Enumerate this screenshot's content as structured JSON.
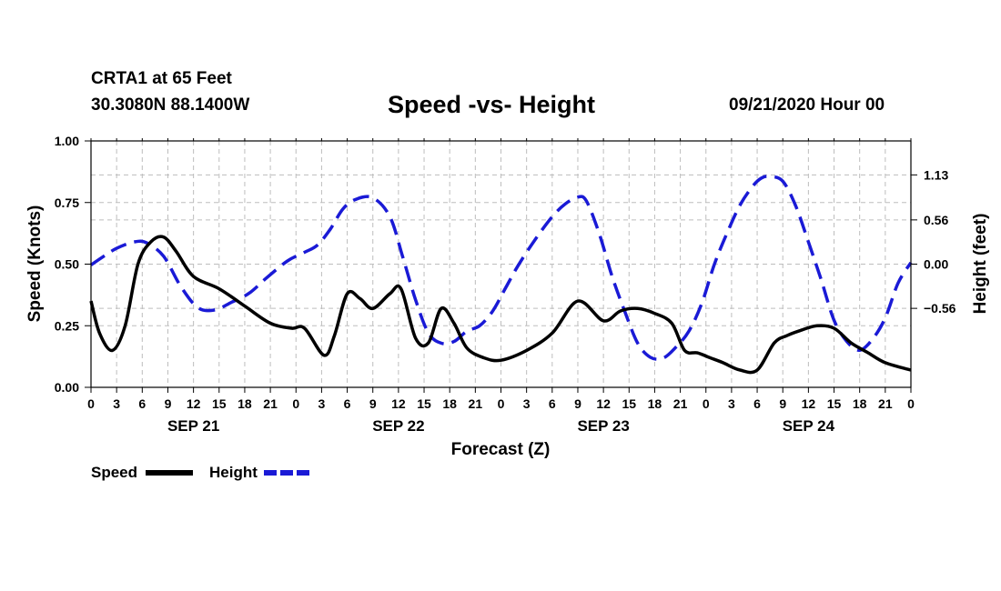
{
  "header": {
    "station": "CRTA1 at 65 Feet",
    "coords": "30.3080N 88.1400W",
    "title": "Speed -vs- Height",
    "datetime": "09/21/2020 Hour 00"
  },
  "chart_data": {
    "type": "line",
    "title": "Speed -vs- Height",
    "xlabel": "Forecast (Z)",
    "ylabel": "Speed (Knots)",
    "y2label": "Height (feet)",
    "xlim": [
      0,
      96
    ],
    "ylim": [
      0,
      1.0
    ],
    "y2lim": [
      -1.56,
      1.56
    ],
    "grid": true,
    "x_ticks": [
      0,
      3,
      6,
      9,
      12,
      15,
      18,
      21,
      24,
      27,
      30,
      33,
      36,
      39,
      42,
      45,
      48,
      51,
      54,
      57,
      60,
      63,
      66,
      69,
      72,
      75,
      78,
      81,
      84,
      87,
      90,
      93,
      96
    ],
    "x_tick_labels": [
      "0",
      "3",
      "6",
      "9",
      "12",
      "15",
      "18",
      "21",
      "0",
      "3",
      "6",
      "9",
      "12",
      "15",
      "18",
      "21",
      "0",
      "3",
      "6",
      "9",
      "12",
      "15",
      "18",
      "21",
      "0",
      "3",
      "6",
      "9",
      "12",
      "15",
      "18",
      "21",
      "0"
    ],
    "y_ticks": [
      0,
      0.25,
      0.5,
      0.75,
      1.0
    ],
    "y_tick_labels": [
      "0.00",
      "0.25",
      "0.50",
      "0.75",
      "1.00"
    ],
    "y2_ticks": [
      1.13,
      0.56,
      0.0,
      -0.56
    ],
    "y2_tick_labels": [
      "1.13",
      "0.56",
      "0.00",
      "−0.56"
    ],
    "day_labels": [
      {
        "x": 12,
        "label": "SEP 21"
      },
      {
        "x": 36,
        "label": "SEP 22"
      },
      {
        "x": 60,
        "label": "SEP 23"
      },
      {
        "x": 84,
        "label": "SEP 24"
      }
    ],
    "legend": [
      {
        "name": "Speed",
        "color": "#000000",
        "style": "solid"
      },
      {
        "name": "Height",
        "color": "#1a1ad6",
        "style": "dashed"
      }
    ],
    "series": [
      {
        "name": "Speed",
        "axis": "left",
        "color": "#000000",
        "dash": false,
        "x": [
          0,
          1,
          2.5,
          4,
          5.5,
          7,
          8.5,
          10,
          12,
          15,
          18,
          21,
          23.5,
          25,
          27.3,
          28.5,
          30,
          31.5,
          33,
          35,
          36.3,
          38,
          39.5,
          41,
          42.5,
          44,
          46,
          48,
          51,
          54,
          57,
          60,
          62,
          64,
          66,
          68,
          69.5,
          71,
          72.5,
          74,
          76,
          78,
          80,
          81.5,
          83,
          85,
          87,
          89,
          91,
          93,
          96
        ],
        "values": [
          0.35,
          0.22,
          0.15,
          0.25,
          0.5,
          0.59,
          0.61,
          0.55,
          0.45,
          0.4,
          0.33,
          0.26,
          0.24,
          0.24,
          0.13,
          0.21,
          0.38,
          0.36,
          0.32,
          0.38,
          0.4,
          0.2,
          0.18,
          0.32,
          0.26,
          0.16,
          0.12,
          0.11,
          0.15,
          0.22,
          0.35,
          0.27,
          0.31,
          0.32,
          0.3,
          0.26,
          0.15,
          0.14,
          0.12,
          0.1,
          0.07,
          0.07,
          0.18,
          0.21,
          0.23,
          0.25,
          0.24,
          0.18,
          0.14,
          0.1,
          0.07
        ]
      },
      {
        "name": "Height",
        "axis": "right",
        "color": "#1a1ad6",
        "dash": true,
        "x": [
          0,
          1.5,
          3,
          5,
          6.5,
          8.5,
          10.5,
          12.5,
          14.5,
          16.5,
          18.5,
          20.5,
          23,
          25,
          26.5,
          28,
          29.5,
          31,
          33,
          35,
          36.5,
          38,
          39.5,
          41,
          42.5,
          44,
          45.5,
          47,
          48.5,
          50,
          52,
          54,
          55.5,
          57,
          58,
          59.5,
          61,
          62.5,
          64,
          65.5,
          67,
          68.5,
          70,
          71.5,
          73,
          74.5,
          76,
          77.5,
          78.5,
          79.5,
          81,
          82.5,
          84,
          85.5,
          87,
          88.5,
          90,
          91.5,
          93,
          94.5,
          96
        ],
        "values": [
          -0.01,
          0.1,
          0.2,
          0.28,
          0.27,
          0.1,
          -0.28,
          -0.55,
          -0.58,
          -0.48,
          -0.37,
          -0.18,
          0.04,
          0.15,
          0.24,
          0.44,
          0.7,
          0.82,
          0.84,
          0.6,
          0.09,
          -0.45,
          -0.87,
          -1.0,
          -0.98,
          -0.85,
          -0.78,
          -0.6,
          -0.31,
          -0.02,
          0.31,
          0.6,
          0.76,
          0.85,
          0.8,
          0.39,
          -0.15,
          -0.6,
          -1.0,
          -1.18,
          -1.19,
          -1.05,
          -0.85,
          -0.5,
          0.0,
          0.4,
          0.75,
          0.99,
          1.09,
          1.11,
          1.05,
          0.74,
          0.28,
          -0.2,
          -0.71,
          -0.98,
          -1.09,
          -0.95,
          -0.68,
          -0.24,
          0.02
        ]
      }
    ]
  }
}
